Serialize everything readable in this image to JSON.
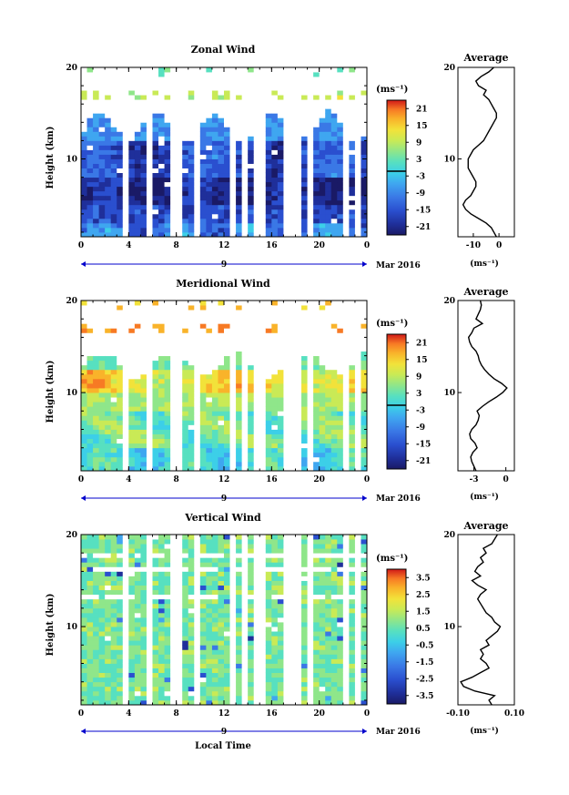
{
  "figure": {
    "bottom_xlabel": "Local Time",
    "colors": {
      "palette": [
        "#1a1a66",
        "#1f2f9a",
        "#2a4fcf",
        "#3a78e6",
        "#3fa6f0",
        "#3ccfe8",
        "#57e0c0",
        "#8fe68a",
        "#c9ea56",
        "#f2e23a",
        "#f9b32a",
        "#f77a24",
        "#ee3a1e",
        "#d01818"
      ],
      "zero_line": "#000000",
      "gap": "#ffffff"
    }
  },
  "chart_data": [
    {
      "type": "heatmap",
      "name": "zonal",
      "title": "Zonal Wind",
      "ylabel": "Height (km)",
      "unit_label": "(ms⁻¹)",
      "date_label": "Mar 2016",
      "x_ticks": [
        "0",
        "4",
        "8",
        "12",
        "16",
        "20",
        "0"
      ],
      "x_day_label": "9",
      "x_range_hours": [
        0,
        24
      ],
      "y_ticks": [
        "20",
        "10"
      ],
      "ylim_km": [
        1.5,
        20
      ],
      "colorbar": {
        "min": -24,
        "max": 24,
        "ticks": [
          "21",
          "15",
          "9",
          "3",
          "-3",
          "-9",
          "-15",
          "-21"
        ],
        "zero_line": true
      },
      "avg_title": "Average",
      "avg_xticks": [
        "-10",
        "0"
      ],
      "avg_xlim": [
        -16,
        6
      ],
      "avg_xlabel": "(ms⁻¹)",
      "avg_profile_height_km": [
        1.5,
        2,
        2.5,
        3,
        3.5,
        4,
        4.5,
        5,
        5.5,
        6,
        6.5,
        7,
        7.5,
        8,
        8.5,
        9,
        9.5,
        10,
        10.5,
        11,
        11.5,
        12,
        12.5,
        13,
        13.5,
        14,
        14.5,
        15,
        15.5,
        16,
        16.5,
        17,
        17.5,
        18,
        18.5,
        19,
        19.5,
        20
      ],
      "avg_profile_value": [
        -1,
        -2,
        -3,
        -5,
        -8,
        -11,
        -13,
        -14,
        -13,
        -11,
        -10,
        -9,
        -9,
        -10,
        -11,
        -12,
        -12,
        -12,
        -11,
        -10,
        -8,
        -6,
        -5,
        -4,
        -3,
        -2,
        -1,
        -1,
        -2,
        -3,
        -4,
        -6,
        -5,
        -8,
        -9,
        -7,
        -4,
        -2
      ]
    },
    {
      "type": "heatmap",
      "name": "meridional",
      "title": "Meridional Wind",
      "ylabel": "Height (km)",
      "unit_label": "(ms⁻¹)",
      "date_label": "Mar 2016",
      "x_ticks": [
        "0",
        "4",
        "8",
        "12",
        "16",
        "20",
        "0"
      ],
      "x_day_label": "9",
      "x_range_hours": [
        0,
        24
      ],
      "y_ticks": [
        "20",
        "10"
      ],
      "ylim_km": [
        1.5,
        20
      ],
      "colorbar": {
        "min": -24,
        "max": 24,
        "ticks": [
          "21",
          "15",
          "9",
          "3",
          "-3",
          "-9",
          "-15",
          "-21"
        ],
        "zero_line": true
      },
      "avg_title": "Average",
      "avg_xticks": [
        "-3",
        "0"
      ],
      "avg_xlim": [
        -4.5,
        0.8
      ],
      "avg_xlabel": "(ms⁻¹)",
      "avg_profile_height_km": [
        1.5,
        2,
        2.5,
        3,
        3.5,
        4,
        4.5,
        5,
        5.5,
        6,
        6.5,
        7,
        7.5,
        8,
        8.5,
        9,
        9.5,
        10,
        10.5,
        11,
        11.5,
        12,
        12.5,
        13,
        13.5,
        14,
        14.5,
        15,
        15.5,
        16,
        16.5,
        17,
        17.5,
        18,
        18.5,
        19,
        19.5,
        20
      ],
      "avg_profile_value": [
        -2.8,
        -3.0,
        -3.2,
        -3.3,
        -3.1,
        -2.7,
        -2.9,
        -3.3,
        -3.4,
        -3.2,
        -2.8,
        -2.6,
        -2.5,
        -2.7,
        -2.2,
        -1.6,
        -0.9,
        -0.3,
        0.1,
        -0.4,
        -1.1,
        -1.6,
        -2.0,
        -2.3,
        -2.5,
        -2.6,
        -2.8,
        -3.2,
        -3.4,
        -3.5,
        -3.2,
        -3.0,
        -2.2,
        -2.8,
        -2.6,
        -2.4,
        -2.3,
        -2.4
      ]
    },
    {
      "type": "heatmap",
      "name": "vertical",
      "title": "Vertical Wind",
      "ylabel": "Height (km)",
      "unit_label": "(ms⁻¹)",
      "date_label": "Mar 2016",
      "x_ticks": [
        "0",
        "4",
        "8",
        "12",
        "16",
        "20",
        "0"
      ],
      "x_day_label": "9",
      "x_range_hours": [
        0,
        24
      ],
      "y_ticks": [
        "20",
        "10"
      ],
      "ylim_km": [
        1.5,
        20
      ],
      "colorbar": {
        "min": -4,
        "max": 4,
        "ticks": [
          "3.5",
          "2.5",
          "1.5",
          "0.5",
          "-0.5",
          "-1.5",
          "-2.5",
          "-3.5"
        ],
        "zero_line": false
      },
      "avg_title": "Average",
      "avg_xticks": [
        "-0.10",
        "0.10"
      ],
      "avg_xlim": [
        -0.1,
        0.1
      ],
      "avg_xlabel": "(ms⁻¹)",
      "avg_profile_height_km": [
        1.5,
        2,
        2.5,
        3,
        3.5,
        4,
        4.5,
        5,
        5.5,
        6,
        6.5,
        7,
        7.5,
        8,
        8.5,
        9,
        9.5,
        10,
        10.5,
        11,
        11.5,
        12,
        12.5,
        13,
        13.5,
        14,
        14.5,
        15,
        15.5,
        16,
        16.5,
        17,
        17.5,
        18,
        18.5,
        19,
        19.5,
        20
      ],
      "avg_profile_value": [
        0.02,
        0.01,
        0.03,
        -0.04,
        -0.08,
        -0.09,
        -0.05,
        -0.02,
        0.01,
        0.0,
        -0.02,
        -0.01,
        -0.02,
        0.01,
        0.0,
        0.02,
        0.04,
        0.05,
        0.03,
        0.02,
        0.0,
        -0.01,
        -0.02,
        -0.03,
        -0.02,
        0.0,
        -0.03,
        -0.05,
        -0.02,
        -0.04,
        -0.03,
        -0.01,
        -0.02,
        0.0,
        -0.01,
        0.02,
        0.03,
        0.04
      ]
    }
  ]
}
